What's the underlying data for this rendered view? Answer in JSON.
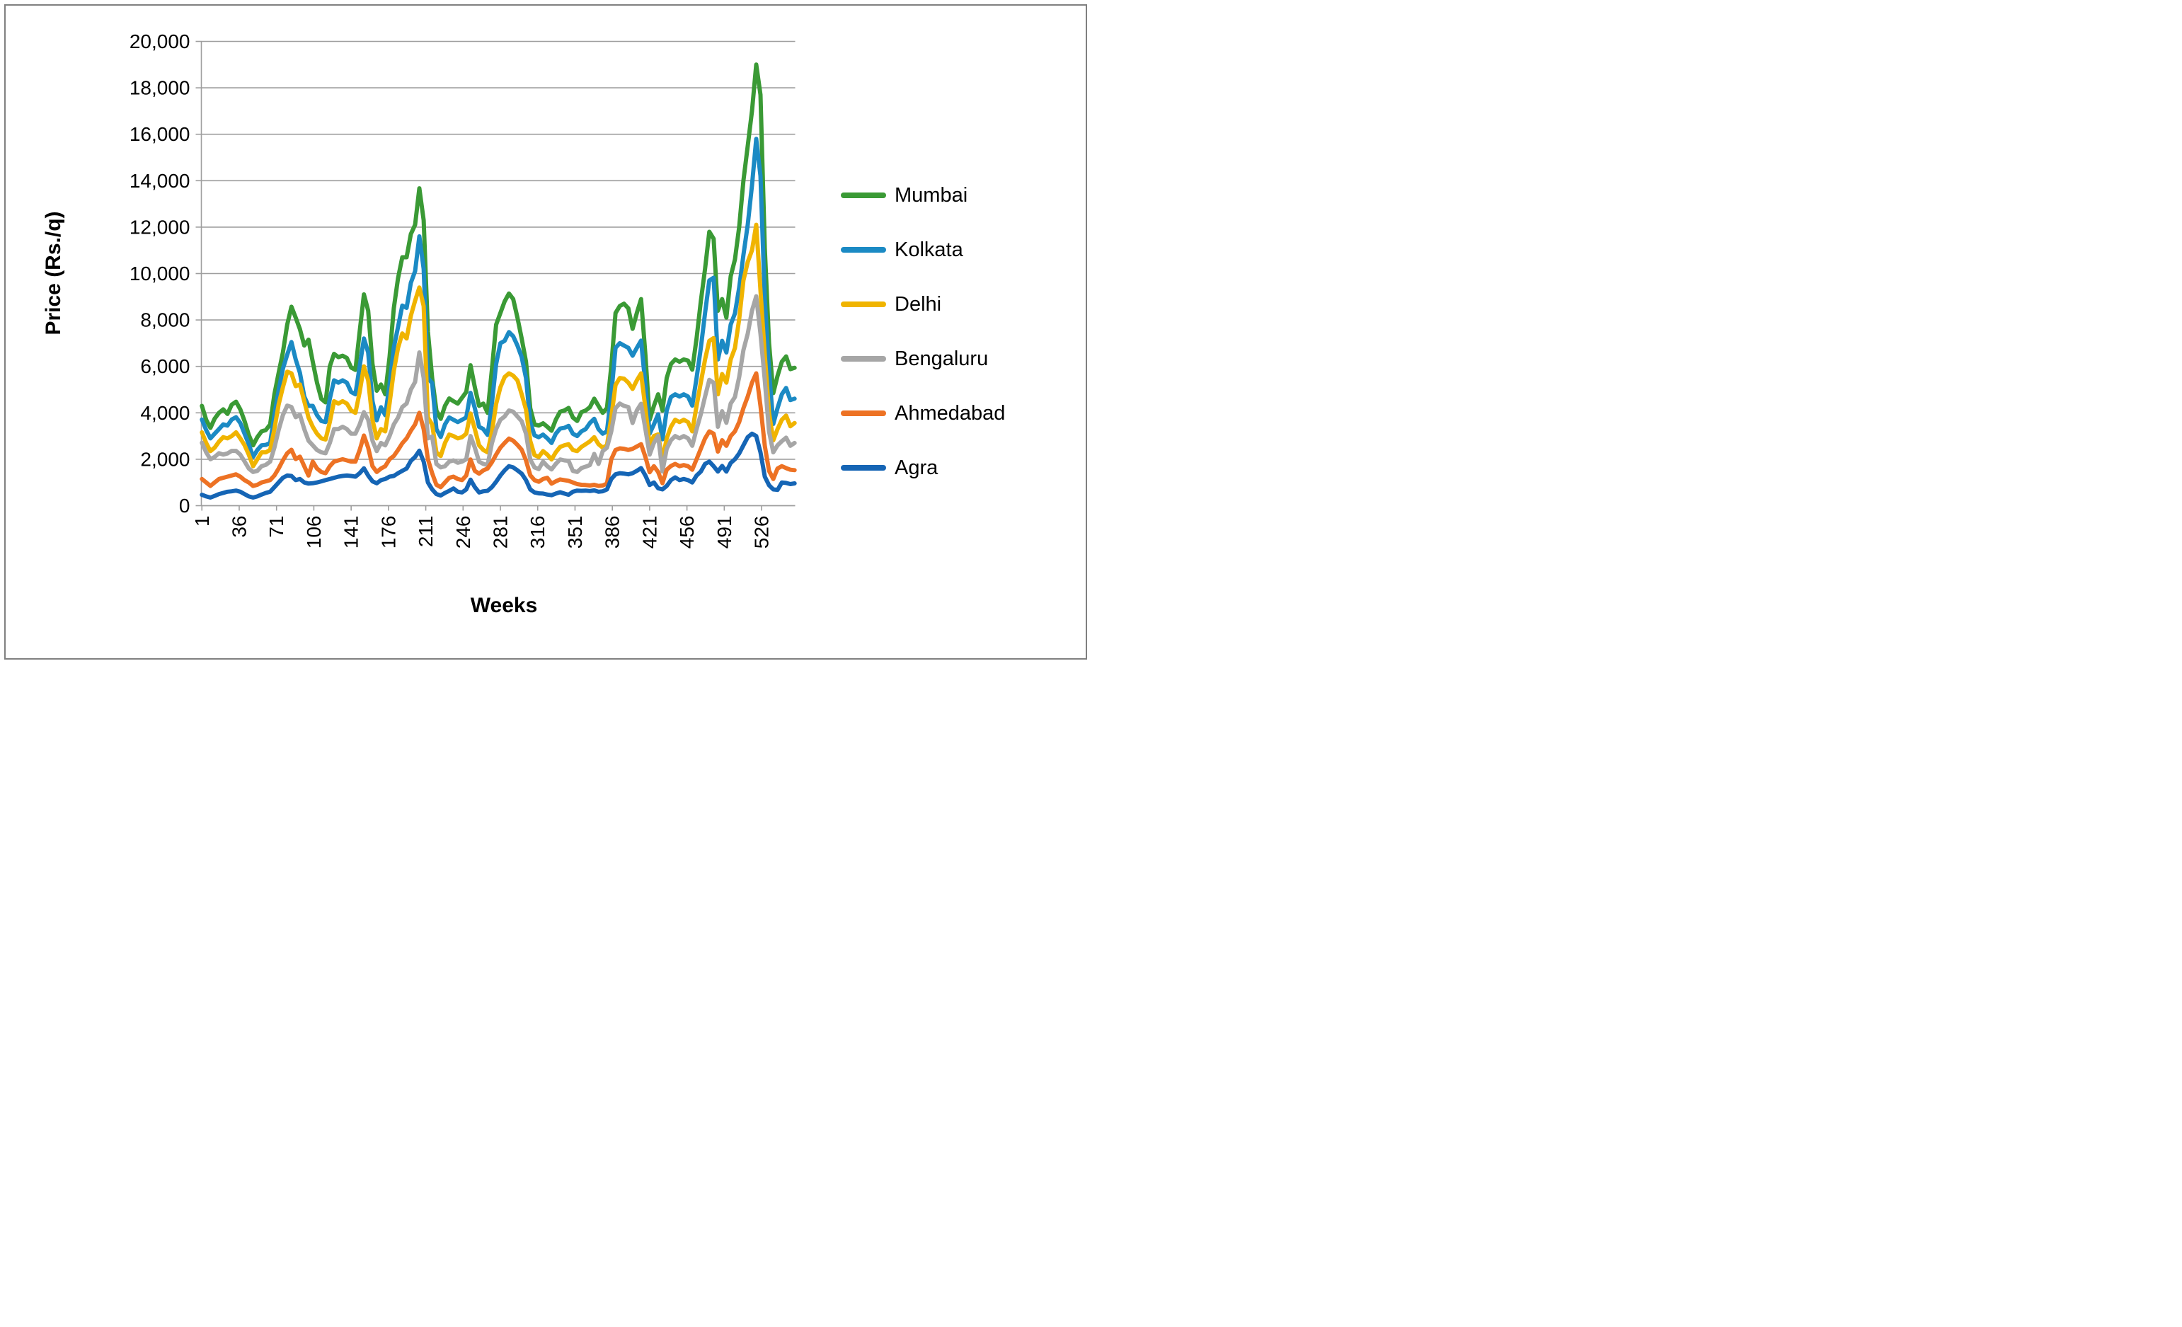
{
  "figure": {
    "background": "#FFFFFF",
    "border_color": "#808080",
    "grid_color": "#9E9E9E",
    "text_color": "#000000"
  },
  "chart_data": {
    "type": "line",
    "title": "",
    "xlabel": "Weeks",
    "ylabel": "Price (Rs./q)",
    "legend_position": "right",
    "grid": true,
    "ylim": [
      0,
      20000
    ],
    "y_tick_step": 2000,
    "y_tick_labels": [
      "0",
      "2,000",
      "4,000",
      "6,000",
      "8,000",
      "10,000",
      "12,000",
      "14,000",
      "16,000",
      "18,000",
      "20,000"
    ],
    "x_ticks": [
      1,
      36,
      71,
      106,
      141,
      176,
      211,
      246,
      281,
      316,
      351,
      386,
      421,
      456,
      491,
      526
    ],
    "x_start": 1,
    "x_step": 4,
    "x_total_weeks": 557,
    "series": [
      {
        "name": "Mumbai",
        "color": "#3A9A35",
        "values": [
          4300,
          3700,
          3350,
          3750,
          4000,
          4150,
          3950,
          4350,
          4480,
          4150,
          3650,
          3050,
          2600,
          2950,
          3200,
          3260,
          3500,
          4800,
          5720,
          6600,
          7800,
          8570,
          8100,
          7600,
          6900,
          7150,
          6200,
          5300,
          4600,
          4450,
          6000,
          6540,
          6400,
          6460,
          6360,
          5950,
          5850,
          7500,
          9100,
          8400,
          6100,
          4950,
          5220,
          4800,
          6400,
          8500,
          9800,
          10700,
          10700,
          11700,
          12100,
          13670,
          12300,
          7500,
          5500,
          4100,
          3740,
          4300,
          4620,
          4500,
          4400,
          4650,
          4900,
          6050,
          5100,
          4300,
          4400,
          4000,
          5860,
          7800,
          8300,
          8800,
          9140,
          8900,
          8100,
          7200,
          6200,
          4200,
          3500,
          3450,
          3550,
          3400,
          3230,
          3700,
          4050,
          4100,
          4210,
          3800,
          3650,
          4030,
          4100,
          4240,
          4610,
          4300,
          4000,
          4200,
          6000,
          8300,
          8600,
          8700,
          8500,
          7620,
          8300,
          8900,
          6500,
          3700,
          4300,
          4800,
          4100,
          5500,
          6100,
          6300,
          6200,
          6300,
          6250,
          5860,
          7200,
          8800,
          10200,
          11800,
          11500,
          8400,
          8900,
          8100,
          9880,
          10600,
          12000,
          14000,
          15500,
          17000,
          19000,
          17700,
          11100,
          7000,
          4850,
          5590,
          6200,
          6430,
          5880,
          5940
        ]
      },
      {
        "name": "Kolkata",
        "color": "#1B8AC4",
        "values": [
          3710,
          3260,
          2900,
          3100,
          3300,
          3500,
          3450,
          3710,
          3810,
          3560,
          3100,
          2650,
          2100,
          2400,
          2600,
          2620,
          2700,
          3900,
          4970,
          5900,
          6500,
          7050,
          6300,
          5720,
          4700,
          4300,
          4300,
          3900,
          3650,
          3600,
          4600,
          5400,
          5300,
          5400,
          5300,
          4900,
          4800,
          6000,
          7200,
          6600,
          4500,
          3680,
          4240,
          3900,
          5200,
          6800,
          7700,
          8620,
          8520,
          9600,
          10100,
          11600,
          10200,
          5500,
          5280,
          3300,
          2960,
          3500,
          3800,
          3700,
          3600,
          3700,
          3800,
          4860,
          4200,
          3400,
          3300,
          3050,
          4400,
          6100,
          7000,
          7100,
          7480,
          7300,
          6900,
          6400,
          5500,
          3600,
          3030,
          2950,
          3060,
          2900,
          2700,
          3100,
          3320,
          3350,
          3440,
          3100,
          3000,
          3200,
          3300,
          3560,
          3740,
          3300,
          3100,
          3200,
          4800,
          6800,
          7000,
          6900,
          6800,
          6460,
          6800,
          7110,
          5200,
          3100,
          3500,
          3940,
          2860,
          4100,
          4680,
          4800,
          4700,
          4800,
          4700,
          4310,
          5500,
          6790,
          8300,
          9700,
          9820,
          6300,
          7100,
          6600,
          7800,
          8280,
          9390,
          10800,
          12100,
          13800,
          15800,
          14200,
          8890,
          5800,
          3520,
          4200,
          4800,
          5070,
          4550,
          4610
        ]
      },
      {
        "name": "Delhi",
        "color": "#F0B400",
        "values": [
          3160,
          2700,
          2350,
          2500,
          2760,
          2950,
          2900,
          3000,
          3160,
          2900,
          2610,
          2200,
          1700,
          2000,
          2300,
          2300,
          2400,
          3300,
          4360,
          5100,
          5770,
          5700,
          5150,
          5220,
          4500,
          3800,
          3400,
          3100,
          2900,
          2850,
          3600,
          4500,
          4400,
          4500,
          4400,
          4100,
          4000,
          4900,
          6000,
          5400,
          3700,
          2900,
          3300,
          3200,
          4400,
          5800,
          6800,
          7420,
          7200,
          8180,
          8830,
          9400,
          8600,
          3800,
          3500,
          2300,
          2140,
          2700,
          3060,
          3000,
          2900,
          2950,
          3100,
          3970,
          3300,
          2600,
          2400,
          2300,
          3180,
          4380,
          5100,
          5540,
          5700,
          5600,
          5400,
          4800,
          4140,
          2790,
          2180,
          2100,
          2350,
          2200,
          1990,
          2300,
          2530,
          2600,
          2650,
          2400,
          2350,
          2530,
          2650,
          2770,
          2950,
          2650,
          2500,
          2600,
          3800,
          5200,
          5500,
          5470,
          5300,
          5030,
          5400,
          5700,
          4200,
          2600,
          3000,
          3070,
          1960,
          2900,
          3400,
          3700,
          3600,
          3700,
          3600,
          3200,
          4300,
          5300,
          6300,
          7100,
          7220,
          4800,
          5670,
          5300,
          6300,
          6790,
          8030,
          9700,
          10500,
          11000,
          12100,
          9270,
          6500,
          4000,
          2820,
          3300,
          3700,
          3880,
          3420,
          3560
        ]
      },
      {
        "name": "Bengaluru",
        "color": "#A6A6A6",
        "values": [
          2710,
          2300,
          2000,
          2100,
          2260,
          2200,
          2250,
          2360,
          2360,
          2200,
          1910,
          1600,
          1450,
          1500,
          1700,
          1760,
          1900,
          2500,
          3260,
          3900,
          4310,
          4250,
          3810,
          3910,
          3300,
          2800,
          2600,
          2400,
          2300,
          2260,
          2700,
          3300,
          3300,
          3400,
          3300,
          3100,
          3100,
          3500,
          4030,
          3700,
          2800,
          2350,
          2700,
          2600,
          3000,
          3500,
          3800,
          4250,
          4400,
          5000,
          5330,
          6600,
          5500,
          2900,
          2980,
          1800,
          1650,
          1700,
          1900,
          1950,
          1850,
          1900,
          2000,
          3000,
          2500,
          1900,
          1800,
          1750,
          2690,
          3300,
          3700,
          3840,
          4100,
          4050,
          3840,
          3640,
          3100,
          1990,
          1650,
          1580,
          1900,
          1700,
          1560,
          1800,
          1990,
          1950,
          1930,
          1500,
          1450,
          1620,
          1680,
          1750,
          2230,
          1800,
          2350,
          2500,
          3200,
          4200,
          4400,
          4300,
          4250,
          3560,
          4100,
          4390,
          3300,
          2200,
          2700,
          3010,
          1470,
          2450,
          2820,
          3000,
          2900,
          3000,
          2900,
          2580,
          3300,
          3940,
          4700,
          5420,
          5300,
          3400,
          4070,
          3570,
          4400,
          4680,
          5540,
          6700,
          7410,
          8400,
          9020,
          7410,
          5400,
          3200,
          2300,
          2600,
          2780,
          2930,
          2580,
          2700
        ]
      },
      {
        "name": "Ahmedabad",
        "color": "#ED7224",
        "values": [
          1150,
          1000,
          850,
          1000,
          1150,
          1200,
          1250,
          1300,
          1350,
          1250,
          1100,
          1000,
          850,
          900,
          1000,
          1050,
          1100,
          1300,
          1600,
          1950,
          2260,
          2410,
          2010,
          2110,
          1700,
          1300,
          1900,
          1600,
          1450,
          1400,
          1700,
          1900,
          1950,
          2000,
          1950,
          1900,
          1900,
          2400,
          3020,
          2500,
          1700,
          1450,
          1600,
          1700,
          2000,
          2140,
          2400,
          2690,
          2900,
          3230,
          3500,
          4000,
          3300,
          2000,
          1400,
          900,
          800,
          1000,
          1200,
          1250,
          1150,
          1100,
          1300,
          1990,
          1500,
          1380,
          1520,
          1600,
          1870,
          2200,
          2500,
          2700,
          2890,
          2800,
          2620,
          2410,
          1950,
          1310,
          1100,
          1030,
          1150,
          1200,
          950,
          1050,
          1130,
          1100,
          1070,
          1000,
          930,
          900,
          890,
          870,
          900,
          850,
          870,
          950,
          2000,
          2400,
          2470,
          2450,
          2400,
          2450,
          2550,
          2650,
          2100,
          1440,
          1700,
          1450,
          970,
          1550,
          1710,
          1800,
          1700,
          1750,
          1700,
          1550,
          2000,
          2450,
          2900,
          3200,
          3100,
          2330,
          2820,
          2580,
          3000,
          3200,
          3600,
          4200,
          4700,
          5300,
          5700,
          4300,
          2580,
          1500,
          1150,
          1600,
          1700,
          1620,
          1550,
          1530
        ]
      },
      {
        "name": "Agra",
        "color": "#1565B5",
        "values": [
          470,
          400,
          350,
          420,
          500,
          550,
          600,
          620,
          650,
          600,
          500,
          400,
          350,
          400,
          480,
          550,
          600,
          800,
          1000,
          1200,
          1300,
          1280,
          1100,
          1150,
          1000,
          950,
          966,
          1000,
          1050,
          1100,
          1150,
          1200,
          1250,
          1280,
          1300,
          1280,
          1250,
          1400,
          1610,
          1300,
          1050,
          966,
          1100,
          1150,
          1250,
          1280,
          1400,
          1500,
          1600,
          1930,
          2100,
          2370,
          1900,
          1000,
          700,
          500,
          440,
          550,
          640,
          740,
          600,
          570,
          700,
          1120,
          800,
          570,
          620,
          640,
          800,
          1030,
          1300,
          1520,
          1700,
          1650,
          1520,
          1380,
          1100,
          700,
          570,
          530,
          520,
          480,
          450,
          520,
          580,
          520,
          470,
          600,
          650,
          640,
          650,
          630,
          660,
          600,
          620,
          700,
          1150,
          1350,
          1400,
          1380,
          1350,
          1400,
          1500,
          1620,
          1300,
          890,
          1000,
          750,
          700,
          850,
          1100,
          1220,
          1100,
          1150,
          1100,
          1000,
          1300,
          1470,
          1800,
          1900,
          1700,
          1470,
          1710,
          1470,
          1840,
          2000,
          2250,
          2600,
          2950,
          3100,
          3000,
          2300,
          1250,
          880,
          700,
          680,
          1000,
          980,
          930,
          960
        ]
      }
    ]
  }
}
